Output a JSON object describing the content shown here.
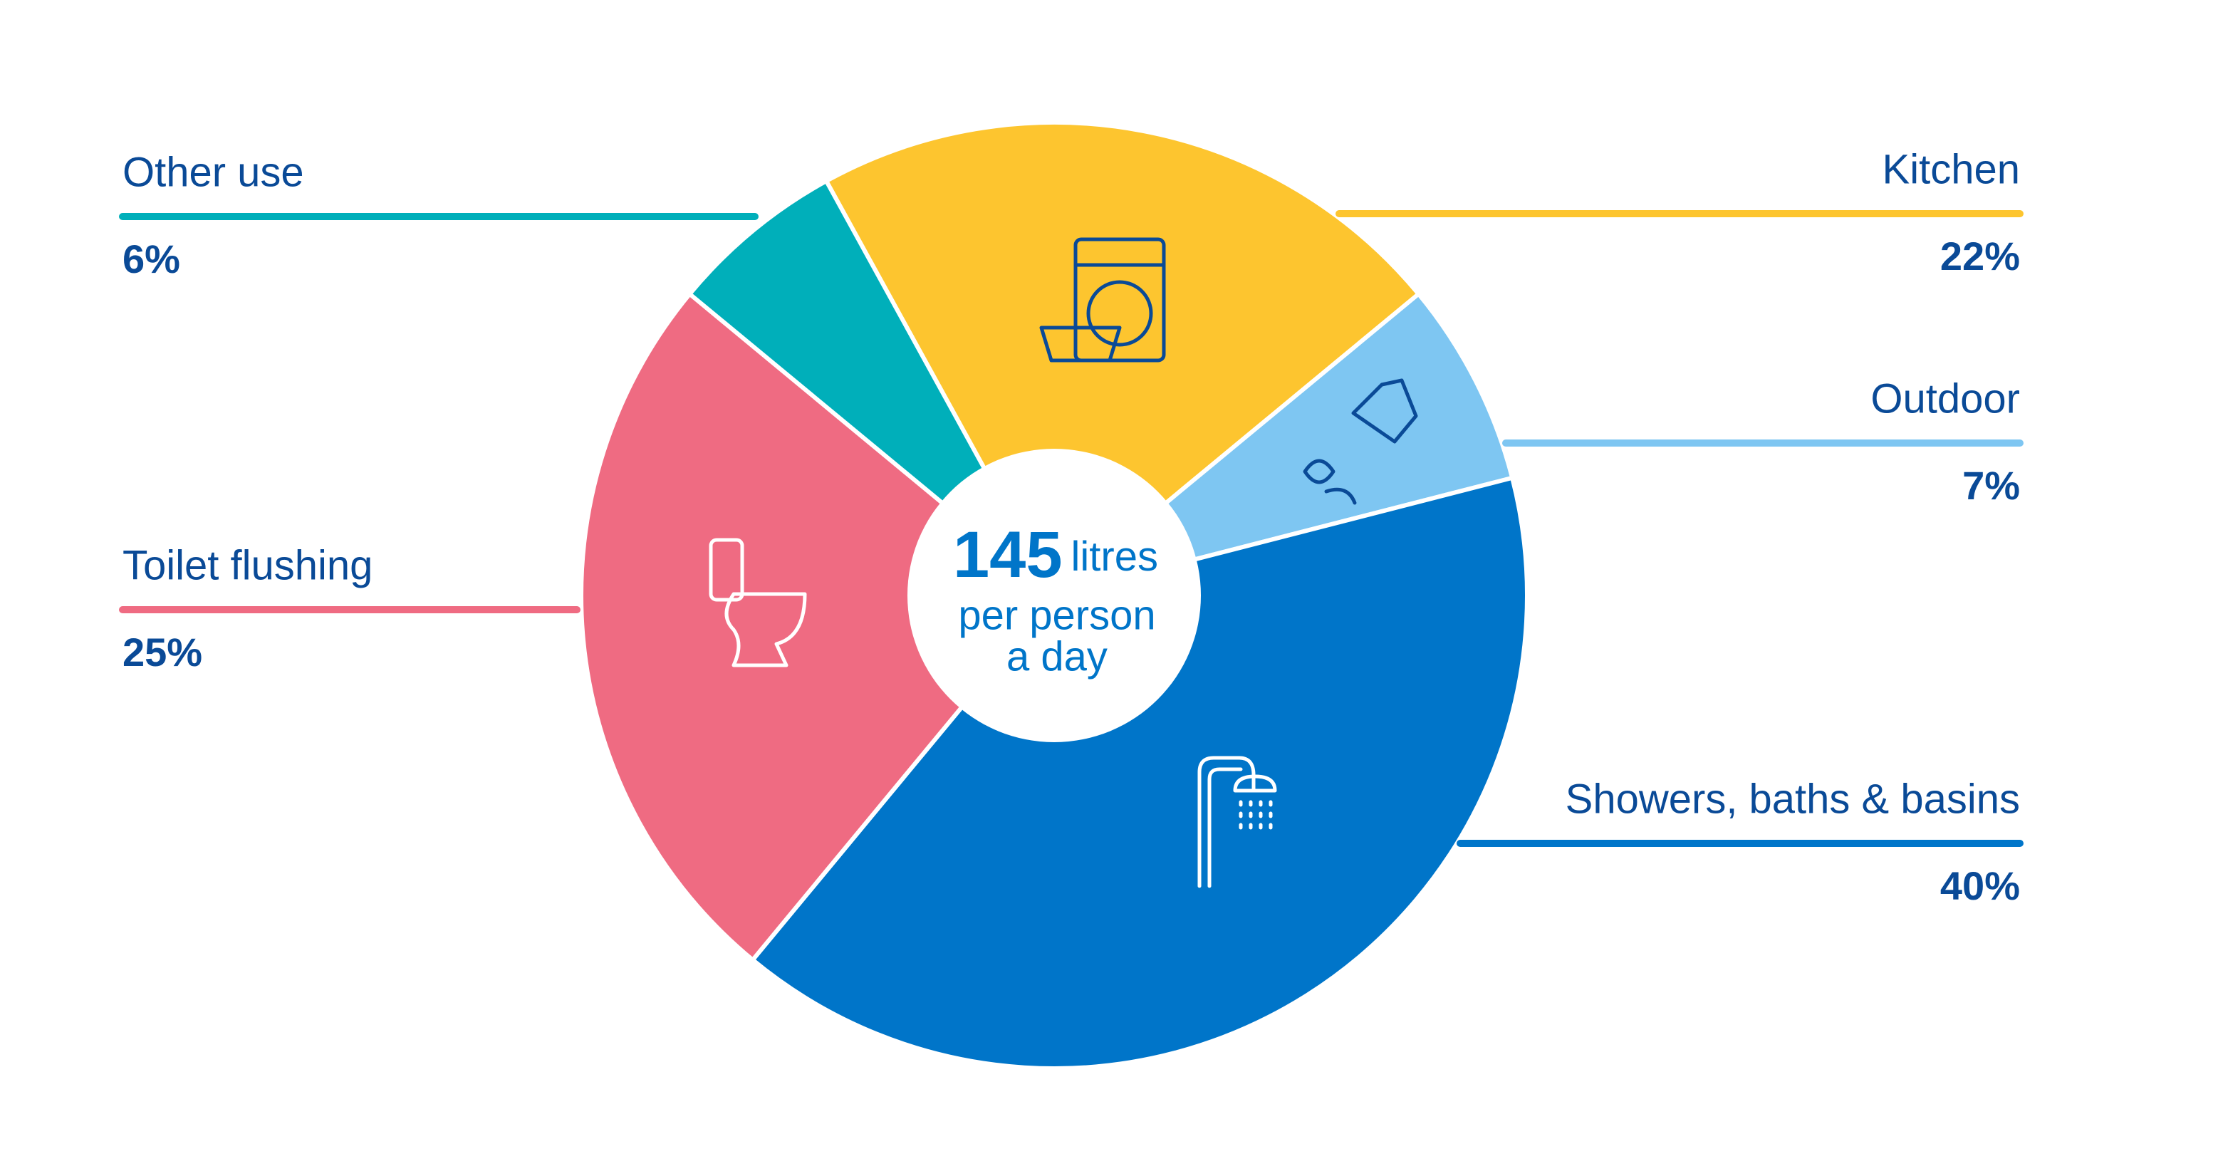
{
  "chart_data": {
    "type": "donut",
    "center_text": {
      "value": 145,
      "unit": "litres",
      "lines": [
        "per person",
        "a day"
      ]
    },
    "categories": [
      "Kitchen",
      "Outdoor",
      "Showers, baths & basins",
      "Toilet flushing",
      "Other use"
    ],
    "values": [
      22,
      7,
      40,
      25,
      6
    ],
    "value_labels": [
      "22%",
      "7%",
      "40%",
      "25%",
      "6%"
    ],
    "colors": [
      "#fdc52f",
      "#7ec6f2",
      "#0075c9",
      "#ef6b82",
      "#00afba"
    ]
  }
}
